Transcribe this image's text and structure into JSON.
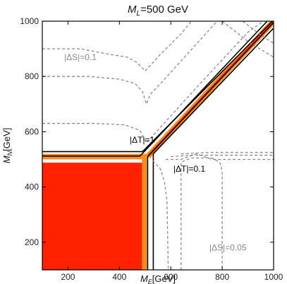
{
  "chart_data": {
    "type": "contour",
    "title": {
      "pre": "M",
      "sub": "L",
      "post": "=500 GeV"
    },
    "xlabel": {
      "pre": "M",
      "sub": "E",
      "post": "[GeV]"
    },
    "ylabel": {
      "pre": "M",
      "sub": "N",
      "post": "[GeV]"
    },
    "xlim": [
      100,
      1000
    ],
    "ylim": [
      100,
      1000
    ],
    "xticks": [
      200,
      400,
      600,
      800,
      1000
    ],
    "yticks": [
      200,
      400,
      600,
      800,
      1000
    ],
    "xtick_labels": [
      "200",
      "400",
      "600",
      "800",
      "1000"
    ],
    "ytick_labels": [
      "200",
      "400",
      "600",
      "800",
      "1000"
    ],
    "regions": [
      {
        "kind": "filled",
        "color": "#ff2200",
        "polygon": [
          [
            100,
            100
          ],
          [
            488,
            100
          ],
          [
            488,
            488
          ],
          [
            100,
            488
          ]
        ]
      },
      {
        "kind": "filled",
        "color": "#ff8c1a",
        "polygon": [
          [
            488,
            100
          ],
          [
            507,
            100
          ],
          [
            507,
            520
          ],
          [
            100,
            520
          ],
          [
            100,
            500
          ],
          [
            488,
            500
          ]
        ]
      },
      {
        "kind": "filled-band",
        "color": "#ff2200",
        "width_gev": 8,
        "path": [
          [
            515,
            515
          ],
          [
            1000,
            1000
          ]
        ]
      },
      {
        "kind": "filled-band",
        "color": "#ff8c1a",
        "width_gev": 22,
        "path": [
          [
            510,
            510
          ],
          [
            1000,
            1000
          ]
        ]
      }
    ],
    "contours": [
      {
        "label": "|ΔT|=1",
        "color": "#000000",
        "style": "solid",
        "segments": [
          [
            [
              100,
              528
            ],
            [
              490,
              528
            ],
            [
              995,
              1000
            ]
          ],
          [
            [
              510,
              100
            ],
            [
              510,
              510
            ],
            [
              1000,
              995
            ]
          ]
        ]
      },
      {
        "label": "|ΔT|=0.1",
        "color": "#000000",
        "style": "solid",
        "segments": [
          [
            [
              100,
              512
            ],
            [
              480,
              512
            ],
            [
              975,
              1000
            ]
          ],
          [
            [
              532,
              100
            ],
            [
              532,
              520
            ],
            [
              1000,
              975
            ]
          ]
        ]
      },
      {
        "label": "|ΔS|=0.1",
        "color": "#8a8a8a",
        "style": "dashed",
        "segments": [
          [
            [
              100,
              900
            ],
            [
              250,
              900
            ],
            [
              360,
              880
            ],
            [
              430,
              870
            ],
            [
              470,
              850
            ],
            [
              500,
              820
            ],
            [
              560,
              880
            ],
            [
              640,
              955
            ],
            [
              680,
              1000
            ]
          ],
          [
            [
              100,
              800
            ],
            [
              280,
              800
            ],
            [
              400,
              790
            ],
            [
              460,
              775
            ],
            [
              490,
              745
            ],
            [
              505,
              700
            ],
            [
              520,
              735
            ],
            [
              600,
              815
            ],
            [
              780,
              1000
            ]
          ],
          [
            [
              100,
              630
            ],
            [
              300,
              630
            ],
            [
              420,
              625
            ],
            [
              480,
              605
            ],
            [
              505,
              560
            ],
            [
              700,
              760
            ],
            [
              900,
              960
            ],
            [
              960,
              1000
            ]
          ],
          [
            [
              580,
              500
            ],
            [
              640,
              500
            ],
            [
              700,
              520
            ],
            [
              760,
              500
            ],
            [
              800,
              500
            ],
            [
              1000,
              500
            ]
          ],
          [
            [
              800,
              1000
            ],
            [
              910,
              920
            ],
            [
              1000,
              870
            ]
          ],
          [
            [
              880,
              1000
            ],
            [
              950,
              950
            ],
            [
              1000,
              920
            ]
          ]
        ]
      },
      {
        "label": "|ΔS|=0.05",
        "color": "#8a8a8a",
        "style": "dashed",
        "segments": [
          [
            [
              530,
              495
            ],
            [
              560,
              465
            ],
            [
              575,
              420
            ],
            [
              585,
              350
            ],
            [
              590,
              100
            ]
          ],
          [
            [
              640,
              100
            ],
            [
              640,
              490
            ],
            [
              680,
              505
            ],
            [
              760,
              505
            ],
            [
              790,
              490
            ],
            [
              800,
              460
            ],
            [
              800,
              100
            ]
          ],
          [
            [
              600,
              510
            ],
            [
              680,
              515
            ],
            [
              800,
              515
            ],
            [
              1000,
              515
            ]
          ],
          [
            [
              640,
              520
            ],
            [
              750,
              525
            ],
            [
              1000,
              525
            ]
          ]
        ]
      }
    ],
    "annotations": [
      {
        "text": "|ΔS|=0.1",
        "x": 185,
        "y": 860,
        "color": "gray"
      },
      {
        "text": "|ΔT|=1",
        "x": 440,
        "y": 560,
        "color": "black"
      },
      {
        "text": "|ΔT|=0.1",
        "x": 610,
        "y": 455,
        "color": "black"
      },
      {
        "text": "|ΔS|=0.05",
        "x": 750,
        "y": 170,
        "color": "gray"
      }
    ],
    "grid": false,
    "legend": "none"
  }
}
